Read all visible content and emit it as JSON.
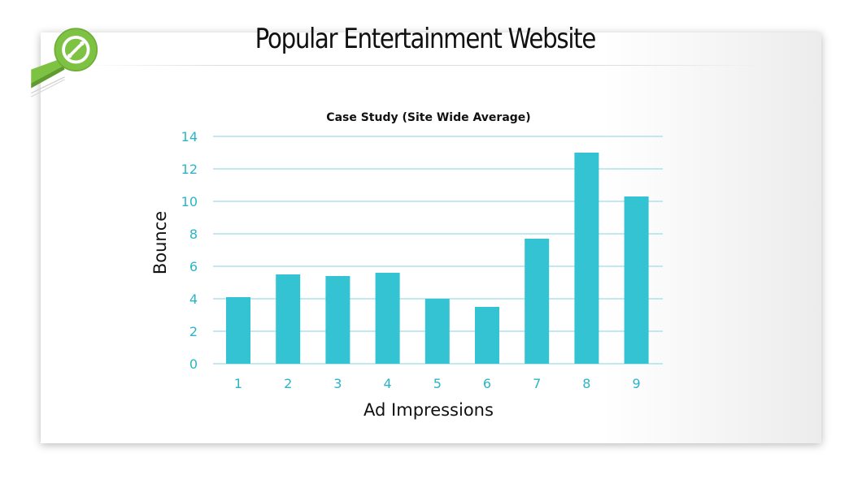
{
  "header": {
    "title": "Popular Entertainment Website"
  },
  "colors": {
    "bar": "#33c3d3",
    "grid": "#9ddce6",
    "tick_text": "#2bb4c8",
    "logo_green": "#7dc243"
  },
  "logo": {
    "icon": "magnifier-link-icon"
  },
  "chart_data": {
    "type": "bar",
    "title": "Case Study (Site Wide Average)",
    "xlabel": "Ad Impressions",
    "ylabel": "Bounce",
    "categories": [
      "1",
      "2",
      "3",
      "4",
      "5",
      "6",
      "7",
      "8",
      "9"
    ],
    "values": [
      4.1,
      5.5,
      5.4,
      5.6,
      4.0,
      3.5,
      7.7,
      13.0,
      10.3
    ],
    "ylim": [
      0,
      14
    ],
    "yticks": [
      "0",
      "2",
      "4",
      "6",
      "8",
      "10",
      "12",
      "14"
    ],
    "grid": true,
    "legend": "none"
  }
}
